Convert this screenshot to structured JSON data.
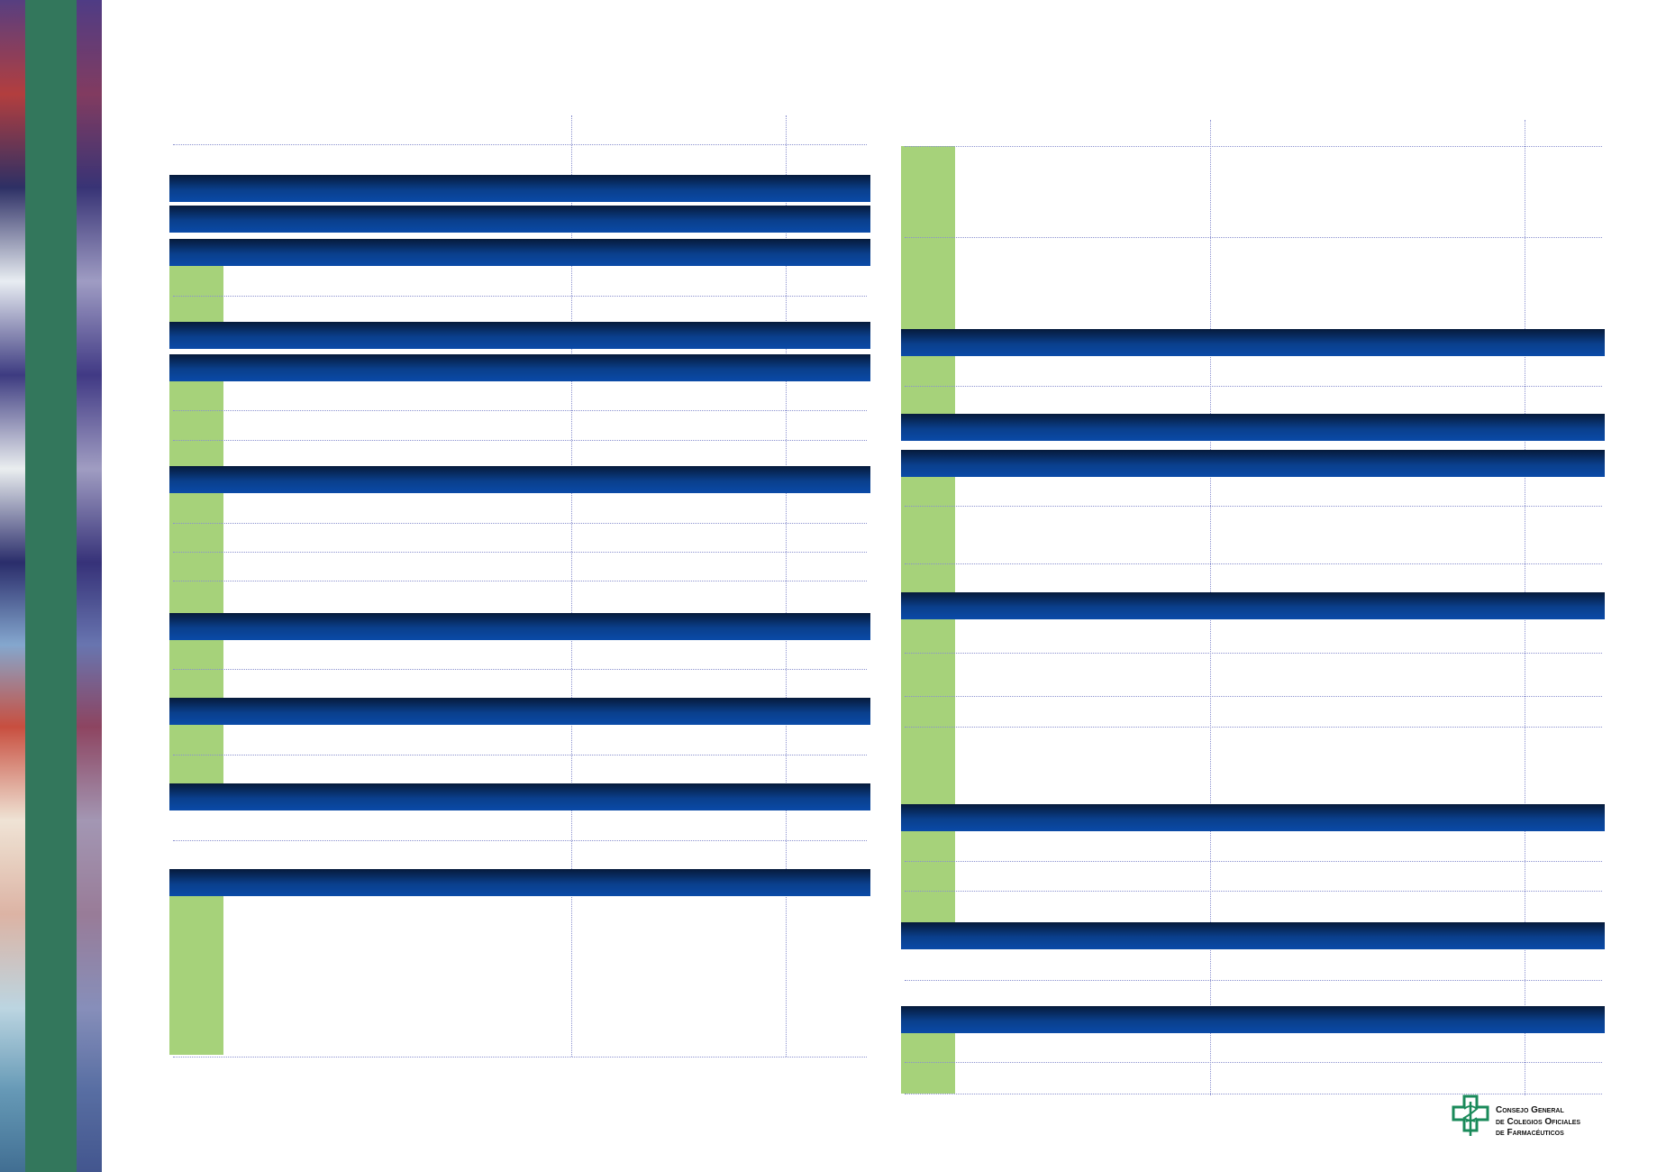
{
  "logo": {
    "lines": [
      "Consejo General",
      "de Colegios Oficiales",
      "de Farmacéuticos"
    ],
    "icon": "pharmacy-cross-caduceus-icon",
    "color": "#1a8a5a"
  },
  "colors": {
    "header_bar_dark": "#061a3a",
    "header_bar_light": "#0a4aa8",
    "green_column": "#a6d27a",
    "dotted_rule": "#8b91cf",
    "side_strip_band": "#2a7a5a"
  }
}
